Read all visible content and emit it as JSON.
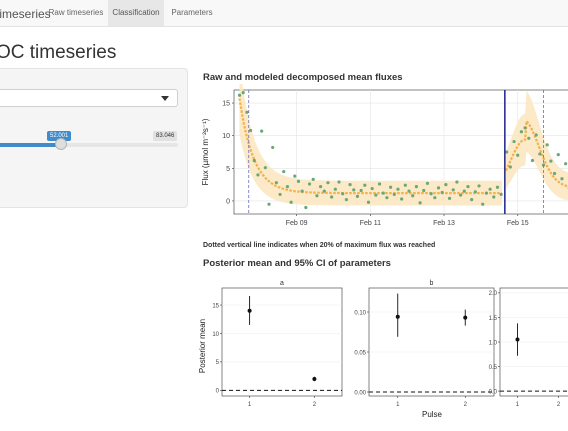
{
  "navbar": {
    "brand": "timeseries",
    "tabs": [
      {
        "label": "Raw timeseries",
        "active": false
      },
      {
        "label": "Classification",
        "active": true
      },
      {
        "label": "Parameters",
        "active": false
      }
    ]
  },
  "page": {
    "title": "OC timeseries"
  },
  "sidebar": {
    "slider": {
      "value": 52.001,
      "value_label": "52.001",
      "max_label": "83.046",
      "fraction": 0.36
    }
  },
  "flux_section": {
    "heading": "Raw and modeled decomposed mean fluxes",
    "note": "Dotted vertical line indicates when 20% of maximum flux was reached"
  },
  "posterior_section": {
    "heading": "Posterior mean and 95% CI of parameters"
  },
  "chart_data": [
    {
      "type": "scatter",
      "title": "",
      "xlabel": "",
      "ylabel": "Flux (µmol m⁻²s⁻¹)",
      "x_tick_labels": [
        "Feb 09",
        "Feb 11",
        "Feb 13",
        "Feb 15"
      ],
      "x_ticks_day": [
        9,
        11,
        13,
        15
      ],
      "xlim_day": [
        7.3,
        16.5
      ],
      "yticks": [
        0,
        5,
        10,
        15
      ],
      "ylim": [
        -2,
        17
      ],
      "dotted_vlines_day": [
        7.7,
        15.7
      ],
      "solid_vline_day": 14.65,
      "colors": {
        "points": "#6aa87a",
        "model": "#f2b24a",
        "ribbon": "#fbe7c2",
        "dotted": "#6a6fb8",
        "solid": "#2b2f8f"
      },
      "series": [
        {
          "points": [
            [
              7.45,
              16.2
            ],
            [
              7.55,
              16.6
            ],
            [
              7.65,
              13.6
            ],
            [
              7.75,
              10.8
            ],
            [
              7.85,
              6.2
            ],
            [
              7.95,
              4.0
            ],
            [
              8.05,
              10.7
            ],
            [
              8.15,
              5.1
            ],
            [
              8.25,
              -0.5
            ],
            [
              8.35,
              8.2
            ],
            [
              8.45,
              2.8
            ],
            [
              8.55,
              1.0
            ],
            [
              8.65,
              4.5
            ],
            [
              8.75,
              2.2
            ],
            [
              8.85,
              -0.2
            ],
            [
              8.95,
              3.8
            ],
            [
              9.05,
              3.0
            ],
            [
              9.15,
              1.5
            ],
            [
              9.25,
              -1.0
            ],
            [
              9.35,
              2.6
            ],
            [
              9.45,
              3.3
            ],
            [
              9.55,
              0.8
            ],
            [
              9.65,
              2.2
            ],
            [
              9.75,
              1.5
            ],
            [
              9.85,
              2.8
            ],
            [
              9.95,
              0.6
            ],
            [
              10.05,
              1.8
            ],
            [
              10.15,
              2.9
            ],
            [
              10.25,
              1.1
            ],
            [
              10.35,
              0.2
            ],
            [
              10.45,
              2.5
            ],
            [
              10.55,
              1.7
            ],
            [
              10.65,
              0.7
            ],
            [
              10.75,
              1.6
            ],
            [
              10.85,
              2.4
            ],
            [
              10.95,
              -0.2
            ],
            [
              11.05,
              1.9
            ],
            [
              11.15,
              0.9
            ],
            [
              11.25,
              2.6
            ],
            [
              11.35,
              1.2
            ],
            [
              11.45,
              0.5
            ],
            [
              11.55,
              2.1
            ],
            [
              11.65,
              1.0
            ],
            [
              11.75,
              1.8
            ],
            [
              11.85,
              0.3
            ],
            [
              11.95,
              2.4
            ],
            [
              12.05,
              1.5
            ],
            [
              12.15,
              0.8
            ],
            [
              12.25,
              2.2
            ],
            [
              12.35,
              -0.3
            ],
            [
              12.45,
              1.6
            ],
            [
              12.55,
              2.7
            ],
            [
              12.65,
              1.1
            ],
            [
              12.75,
              0.5
            ],
            [
              12.85,
              2.0
            ],
            [
              12.95,
              1.3
            ],
            [
              13.05,
              2.5
            ],
            [
              13.15,
              0.4
            ],
            [
              13.25,
              1.7
            ],
            [
              13.35,
              2.9
            ],
            [
              13.45,
              0.9
            ],
            [
              13.55,
              1.5
            ],
            [
              13.65,
              2.2
            ],
            [
              13.75,
              0.2
            ],
            [
              13.85,
              1.4
            ],
            [
              13.95,
              2.3
            ],
            [
              14.05,
              -0.5
            ],
            [
              14.15,
              1.2
            ],
            [
              14.25,
              1.8
            ],
            [
              14.35,
              0.6
            ],
            [
              14.45,
              2.1
            ],
            [
              14.55,
              1.0
            ],
            [
              14.7,
              7.5
            ],
            [
              14.8,
              5.2
            ],
            [
              14.9,
              9.1
            ],
            [
              15.0,
              7.0
            ],
            [
              15.1,
              10.6
            ],
            [
              15.2,
              11.2
            ],
            [
              15.3,
              9.6
            ],
            [
              15.4,
              6.2
            ],
            [
              15.5,
              10.1
            ],
            [
              15.6,
              7.2
            ],
            [
              15.7,
              5.5
            ],
            [
              15.8,
              8.6
            ],
            [
              15.9,
              6.1
            ],
            [
              16.0,
              4.2
            ],
            [
              16.1,
              7.1
            ],
            [
              16.2,
              3.4
            ],
            [
              16.3,
              5.7
            ],
            [
              16.4,
              2.0
            ]
          ]
        }
      ]
    },
    {
      "type": "scatter",
      "title": "Posterior mean and 95% CI of parameters",
      "xlabel": "Pulse",
      "ylabel": "Posterior mean",
      "panels": [
        {
          "name": "a",
          "yticks": [
            0,
            5,
            10,
            15
          ],
          "ylim": [
            -1,
            18
          ],
          "points": [
            {
              "x": 1,
              "mean": 14.0,
              "lo": 11.5,
              "hi": 16.6
            },
            {
              "x": 2,
              "mean": 2.0,
              "lo": 1.6,
              "hi": 2.4
            }
          ]
        },
        {
          "name": "b",
          "yticks": [
            0.0,
            0.05,
            0.1
          ],
          "ytick_labels": [
            "0.00",
            "0.05",
            "0.10"
          ],
          "ylim": [
            -0.005,
            0.13
          ],
          "points": [
            {
              "x": 1,
              "mean": 0.094,
              "lo": 0.069,
              "hi": 0.123
            },
            {
              "x": 2,
              "mean": 0.093,
              "lo": 0.083,
              "hi": 0.103
            }
          ]
        },
        {
          "name": "",
          "yticks": [
            0.0,
            0.5,
            1.0,
            1.5,
            2.0
          ],
          "ytick_labels": [
            "0.0",
            "0.5",
            "1.0",
            "1.5",
            "2.0"
          ],
          "ylim": [
            -0.1,
            2.1
          ],
          "points": [
            {
              "x": 1,
              "mean": 1.05,
              "lo": 0.72,
              "hi": 1.38
            }
          ]
        }
      ],
      "x_tick_labels": [
        "1",
        "2"
      ],
      "hline": 0
    }
  ]
}
